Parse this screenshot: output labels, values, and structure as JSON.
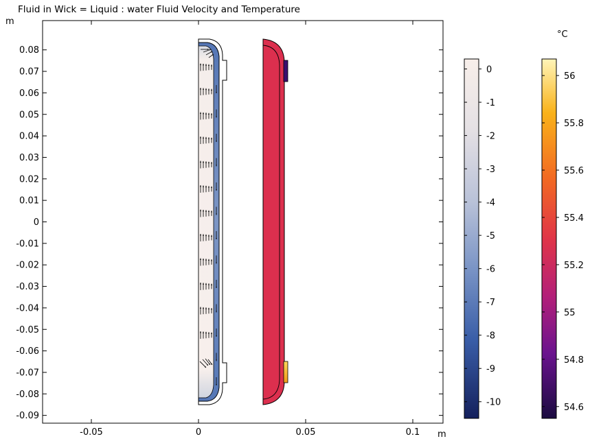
{
  "chart_data": {
    "type": "heatmap",
    "title": "Fluid in Wick = Liquid : water Fluid Velocity and Temperature",
    "x_unit": "m",
    "y_unit": "m",
    "xlim": [
      -0.073,
      0.114
    ],
    "ylim": [
      -0.094,
      0.092
    ],
    "x_ticks": [
      -0.05,
      0,
      0.05,
      0.1
    ],
    "y_ticks": [
      0.08,
      0.07,
      0.06,
      0.05,
      0.04,
      0.03,
      0.02,
      0.01,
      0,
      -0.01,
      -0.02,
      -0.03,
      -0.04,
      -0.05,
      -0.06,
      -0.07,
      -0.08,
      -0.09
    ],
    "x_tick_labels": [
      "-0.05",
      "0",
      "0.05",
      "0.1"
    ],
    "y_tick_labels": [
      "0.08",
      "0.07",
      "0.06",
      "0.05",
      "0.04",
      "0.03",
      "0.02",
      "0.01",
      "0",
      "-0.01",
      "-0.02",
      "-0.03",
      "-0.04",
      "-0.05",
      "-0.06",
      "-0.07",
      "-0.08",
      "-0.09"
    ],
    "velocity_colorbar": {
      "range": [
        -10.5,
        0.3
      ],
      "ticks": [
        0,
        -1,
        -2,
        -3,
        -4,
        -5,
        -6,
        -7,
        -8,
        -9,
        -10
      ],
      "tick_labels": [
        "0",
        "-1",
        "-2",
        "-3",
        "-4",
        "-5",
        "-6",
        "-7",
        "-8",
        "-9",
        "-10"
      ],
      "colors": [
        "#f8efea",
        "#d7d8de",
        "#9aadcf",
        "#5b7dbb",
        "#2a4f99",
        "#14235f"
      ]
    },
    "temperature_colorbar": {
      "unit": "°C",
      "range": [
        54.55,
        56.07
      ],
      "ticks": [
        56,
        55.8,
        55.6,
        55.4,
        55.2,
        55,
        54.8,
        54.6
      ],
      "tick_labels": [
        "56",
        "55.8",
        "55.6",
        "55.4",
        "55.2",
        "55",
        "54.8",
        "54.6"
      ],
      "colors": [
        "#1e0c45",
        "#5a108a",
        "#a8217f",
        "#dc2c4f",
        "#f3641f",
        "#f9a411",
        "#fff4b0"
      ]
    },
    "velocity_domain": {
      "x_range": [
        0,
        0.011
      ],
      "y_range": [
        -0.085,
        0.085
      ],
      "wick_x_range": [
        0.009,
        0.0098
      ]
    },
    "temperature_domain": {
      "x_range": [
        0.03,
        0.041
      ],
      "y_range": [
        -0.085,
        0.085
      ]
    }
  }
}
